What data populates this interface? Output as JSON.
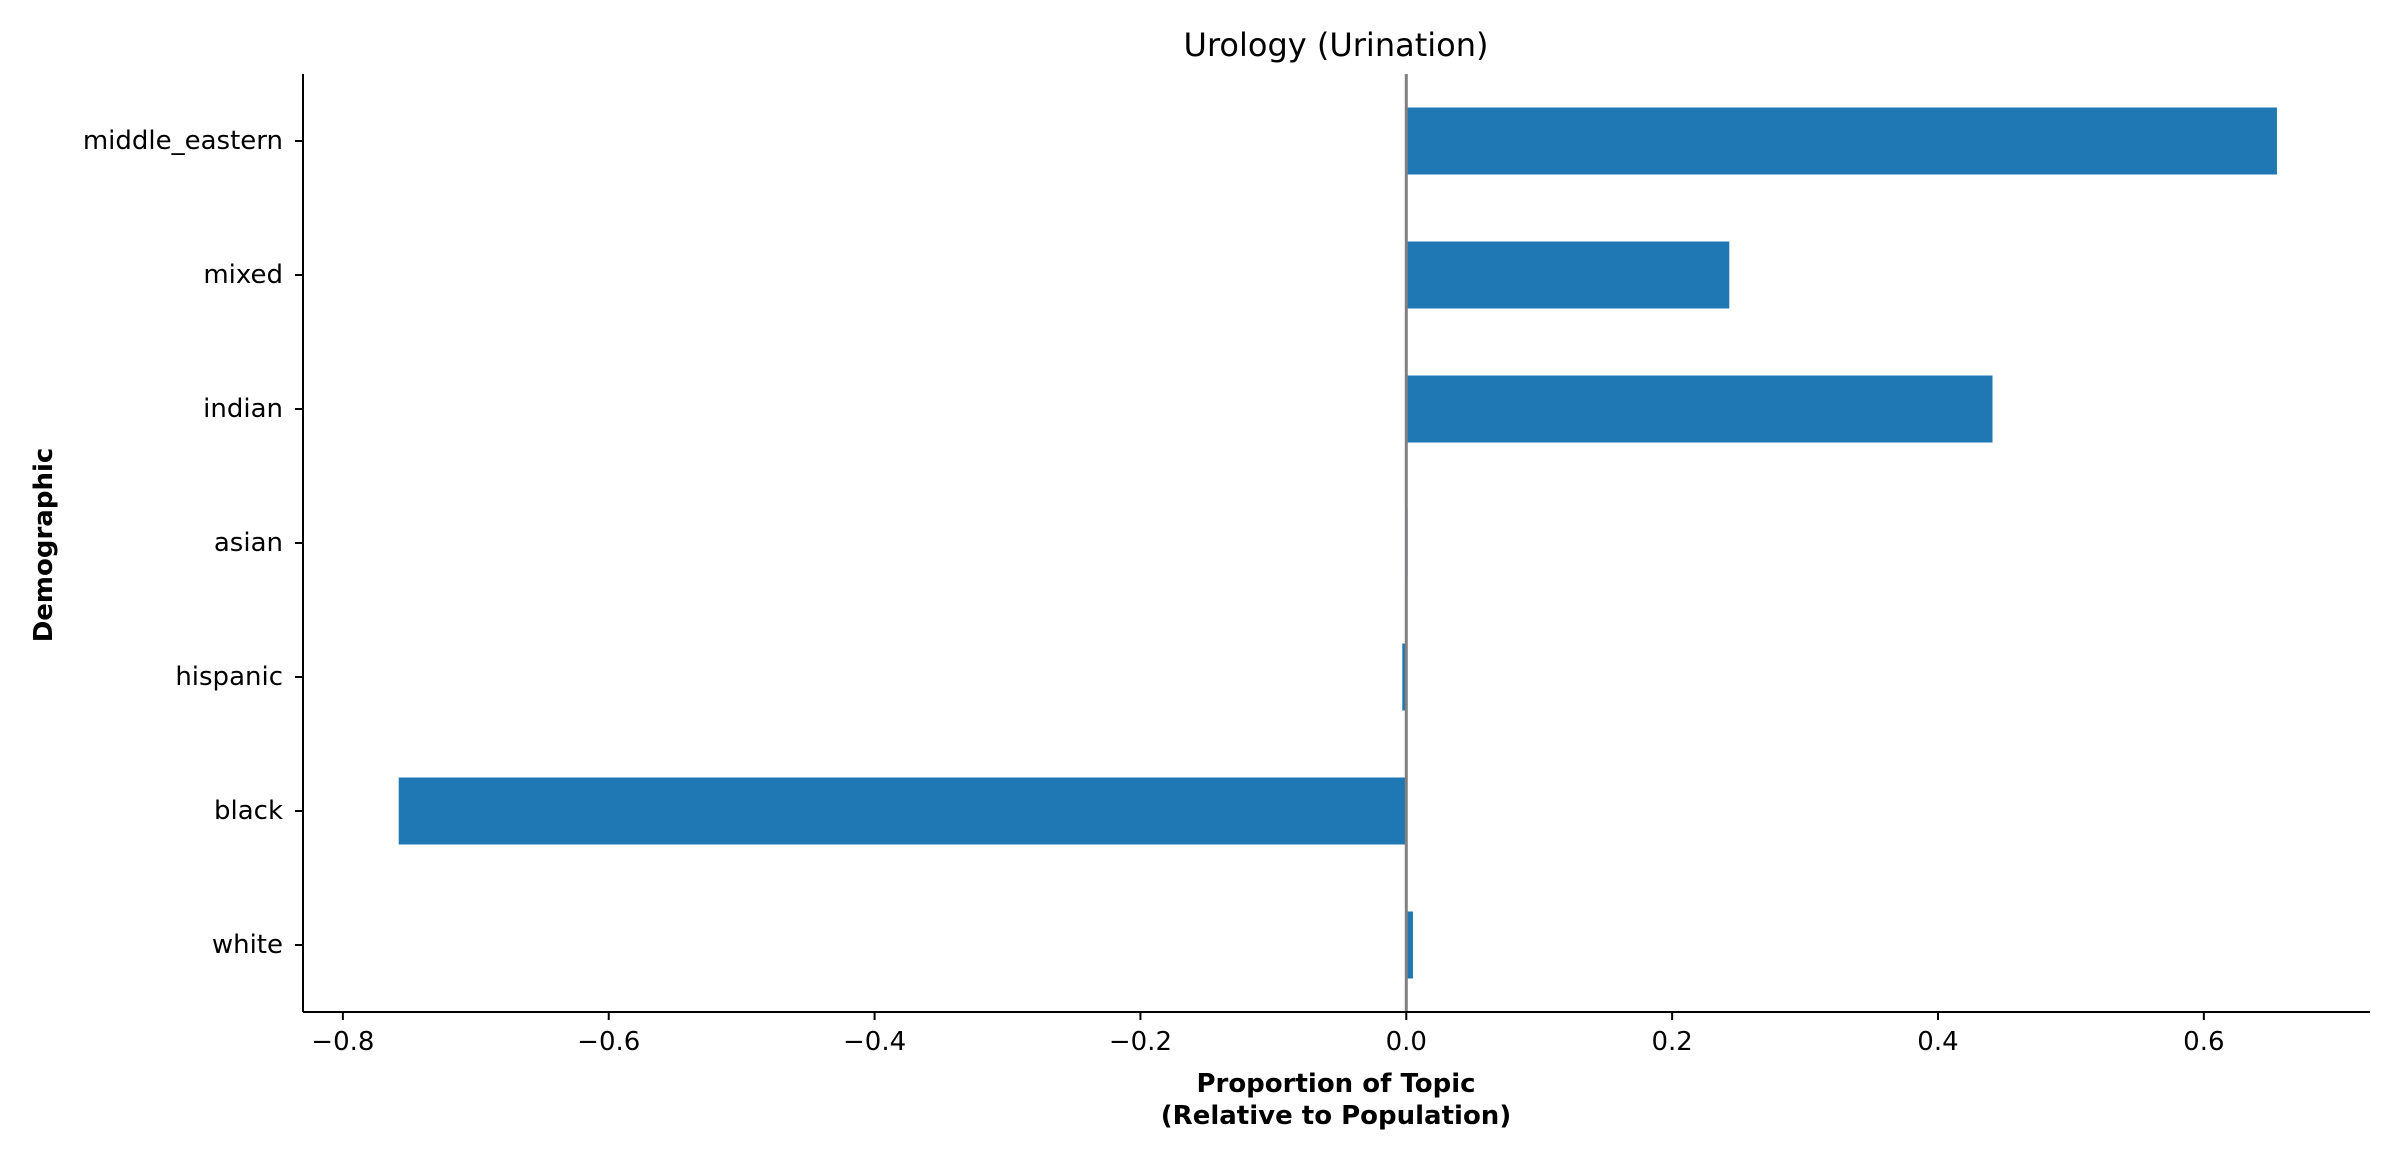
{
  "chart_data": {
    "type": "bar",
    "orientation": "horizontal",
    "title": "Urology (Urination)",
    "xlabel_lines": [
      "Proportion of Topic",
      "(Relative to Population)"
    ],
    "ylabel": "Demographic",
    "categories": [
      "white",
      "black",
      "hispanic",
      "asian",
      "indian",
      "mixed",
      "middle_eastern"
    ],
    "values": [
      0.005,
      -0.758,
      -0.003,
      0.001,
      0.441,
      0.243,
      0.655
    ],
    "xlim": [
      -0.83,
      0.725
    ],
    "xticks": [
      -0.8,
      -0.6,
      -0.4,
      -0.2,
      0.0,
      0.2,
      0.4,
      0.6
    ],
    "xtick_labels": [
      "−0.8",
      "−0.6",
      "−0.4",
      "−0.2",
      "0.0",
      "0.2",
      "0.4",
      "0.6"
    ],
    "zero_line": true,
    "grid": false,
    "legend": "none",
    "colors": {
      "bar": "#1f77b4",
      "zero_line": "#808080"
    }
  }
}
